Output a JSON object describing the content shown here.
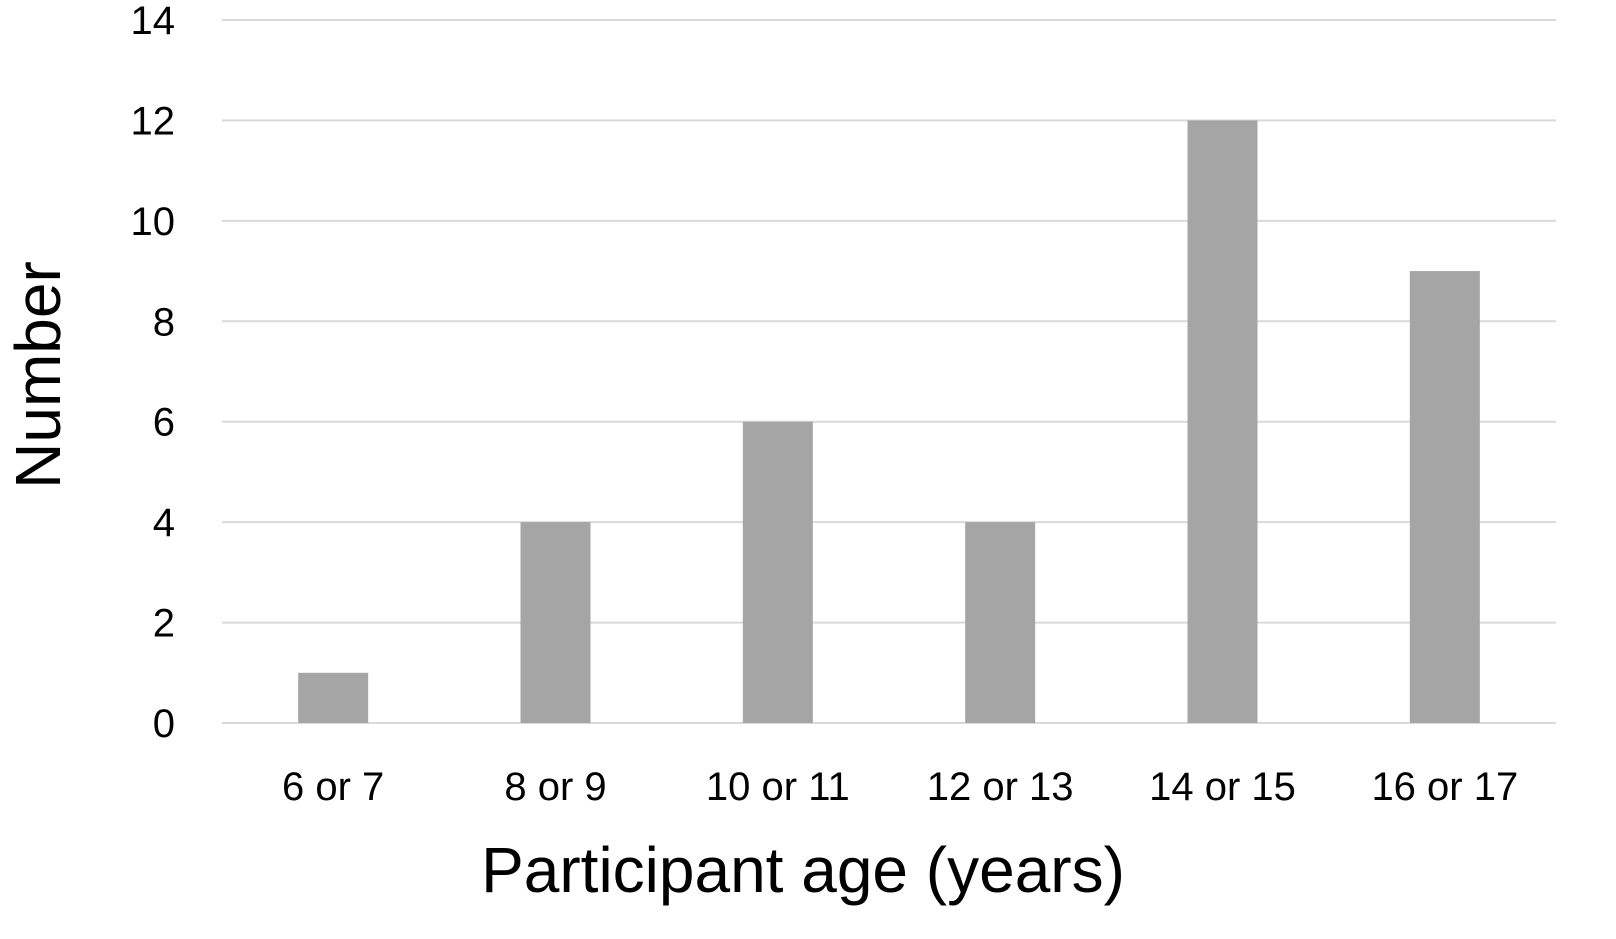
{
  "chart_data": {
    "type": "bar",
    "title": "",
    "xlabel": "Participant age (years)",
    "ylabel": "Number",
    "categories": [
      "6 or 7",
      "8 or 9",
      "10 or 11",
      "12 or 13",
      "14 or 15",
      "16 or 17"
    ],
    "values": [
      1,
      4,
      6,
      4,
      12,
      9
    ],
    "ylim": [
      0,
      14
    ],
    "yticks": [
      "0",
      "2",
      "4",
      "6",
      "8",
      "10",
      "12",
      "14"
    ],
    "grid": true,
    "legend": "none",
    "bar_color": "#a5a5a5",
    "grid_color": "#d9d9d9"
  }
}
